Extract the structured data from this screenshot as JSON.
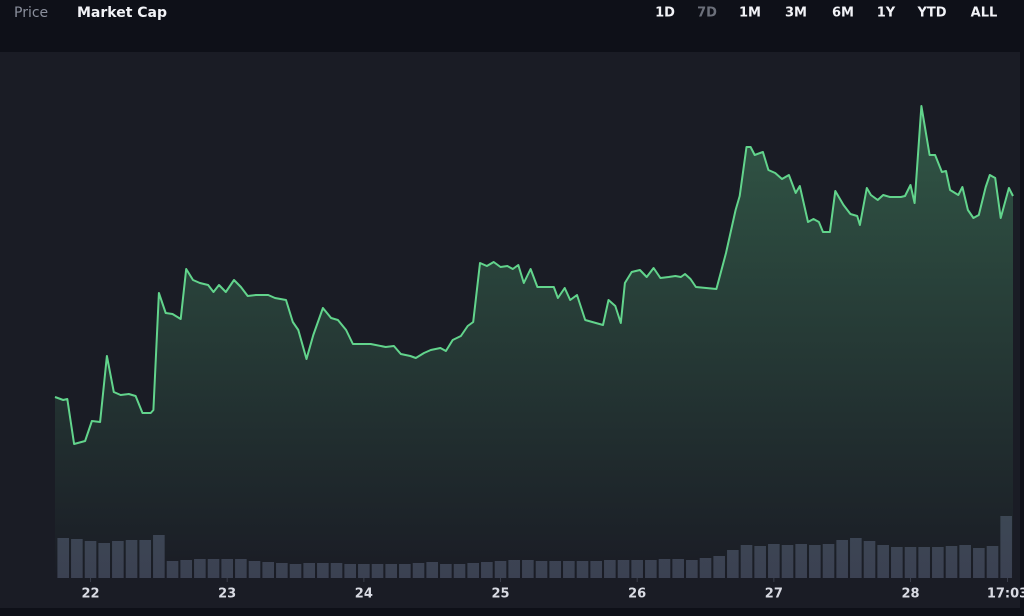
{
  "tabs": [
    "Price",
    "Market Cap"
  ],
  "ranges": [
    "1D",
    "7D",
    "1M",
    "3M",
    "6M",
    "1Y",
    "YTD",
    "ALL"
  ],
  "chart_data": [
    {
      "type": "line",
      "color": "#62d48c",
      "xlim": [
        21.74,
        28.75
      ],
      "xticks": [
        22,
        23,
        24,
        25,
        26,
        27,
        28,
        {
          "value": 28.71,
          "label": "17:03"
        }
      ],
      "ylim": [
        0,
        526
      ],
      "x": [
        21.74,
        21.8,
        21.83,
        21.88,
        21.96,
        22.01,
        22.07,
        22.12,
        22.17,
        22.22,
        22.28,
        22.33,
        22.38,
        22.44,
        22.46,
        22.5,
        22.55,
        22.6,
        22.66,
        22.7,
        22.75,
        22.8,
        22.86,
        22.9,
        22.94,
        22.99,
        23.05,
        23.1,
        23.15,
        23.21,
        23.3,
        23.35,
        23.43,
        23.48,
        23.52,
        23.58,
        23.63,
        23.7,
        23.76,
        23.81,
        23.87,
        23.92,
        24.05,
        24.16,
        24.22,
        24.27,
        24.34,
        24.38,
        24.44,
        24.49,
        24.56,
        24.6,
        24.65,
        24.71,
        24.76,
        24.8,
        24.85,
        24.9,
        24.95,
        25.0,
        25.05,
        25.09,
        25.13,
        25.17,
        25.22,
        25.27,
        25.39,
        25.42,
        25.47,
        25.51,
        25.56,
        25.62,
        25.75,
        25.79,
        25.84,
        25.88,
        25.91,
        25.96,
        26.02,
        26.07,
        26.12,
        26.17,
        26.23,
        26.28,
        26.32,
        26.35,
        26.39,
        26.43,
        26.58,
        26.65,
        26.72,
        26.75,
        26.8,
        26.83,
        26.86,
        26.92,
        26.96,
        27.01,
        27.06,
        27.11,
        27.16,
        27.19,
        27.25,
        27.29,
        27.33,
        27.36,
        27.41,
        27.45,
        27.51,
        27.56,
        27.61,
        27.63,
        27.68,
        27.71,
        27.76,
        27.8,
        27.85,
        27.93,
        27.96,
        28.0,
        28.03,
        28.08,
        28.14,
        28.18,
        28.23,
        28.26,
        28.29,
        28.35,
        28.38,
        28.42,
        28.46,
        28.5,
        28.55,
        28.58,
        28.62,
        28.66,
        28.72,
        28.75
      ],
      "values": [
        181,
        178,
        179,
        134,
        137,
        157,
        156,
        222,
        186,
        183,
        184,
        182,
        165,
        165,
        168,
        285,
        265,
        264,
        259,
        309,
        298,
        295,
        293,
        286,
        293,
        286,
        298,
        291,
        282,
        283,
        283,
        280,
        278,
        256,
        248,
        219,
        243,
        270,
        260,
        258,
        248,
        234,
        234,
        231,
        232,
        224,
        222,
        220,
        225,
        228,
        230,
        227,
        238,
        242,
        252,
        256,
        315,
        312,
        316,
        311,
        312,
        309,
        313,
        295,
        309,
        291,
        291,
        280,
        290,
        278,
        283,
        258,
        253,
        278,
        272,
        255,
        295,
        306,
        308,
        301,
        310,
        300,
        301,
        302,
        301,
        304,
        299,
        291,
        289,
        325,
        368,
        382,
        431,
        431,
        423,
        426,
        408,
        405,
        399,
        403,
        385,
        392,
        356,
        359,
        356,
        346,
        346,
        387,
        373,
        364,
        362,
        353,
        390,
        383,
        378,
        383,
        381,
        381,
        382,
        393,
        375,
        472,
        423,
        423,
        406,
        407,
        388,
        383,
        391,
        368,
        360,
        363,
        391,
        403,
        400,
        360,
        390,
        382
      ]
    },
    {
      "type": "bar",
      "color": "#3b4152",
      "xlim": [
        21.74,
        28.75
      ],
      "ylim": [
        0,
        100
      ],
      "x": [
        21.8,
        21.9,
        22.0,
        22.1,
        22.2,
        22.3,
        22.4,
        22.5,
        22.6,
        22.7,
        22.8,
        22.9,
        23.0,
        23.1,
        23.2,
        23.3,
        23.4,
        23.5,
        23.6,
        23.7,
        23.8,
        23.9,
        24.0,
        24.1,
        24.2,
        24.3,
        24.4,
        24.5,
        24.6,
        24.7,
        24.8,
        24.9,
        25.0,
        25.1,
        25.2,
        25.3,
        25.4,
        25.5,
        25.6,
        25.7,
        25.8,
        25.9,
        26.0,
        26.1,
        26.2,
        26.3,
        26.4,
        26.5,
        26.6,
        26.7,
        26.8,
        26.9,
        27.0,
        27.1,
        27.2,
        27.3,
        27.4,
        27.5,
        27.6,
        27.7,
        27.8,
        27.9,
        28.0,
        28.1,
        28.2,
        28.3,
        28.4,
        28.5,
        28.6,
        28.7
      ],
      "values": [
        40,
        39,
        37,
        35,
        37,
        38,
        38,
        43,
        17,
        18,
        19,
        19,
        19,
        19,
        17,
        16,
        15,
        14,
        15,
        15,
        15,
        14,
        14,
        14,
        14,
        14,
        15,
        16,
        14,
        14,
        15,
        16,
        17,
        18,
        18,
        17,
        17,
        17,
        17,
        17,
        18,
        18,
        18,
        18,
        19,
        19,
        18,
        20,
        22,
        28,
        33,
        32,
        34,
        33,
        34,
        33,
        34,
        38,
        40,
        37,
        33,
        31,
        31,
        31,
        31,
        32,
        33,
        30,
        32,
        62
      ]
    }
  ]
}
